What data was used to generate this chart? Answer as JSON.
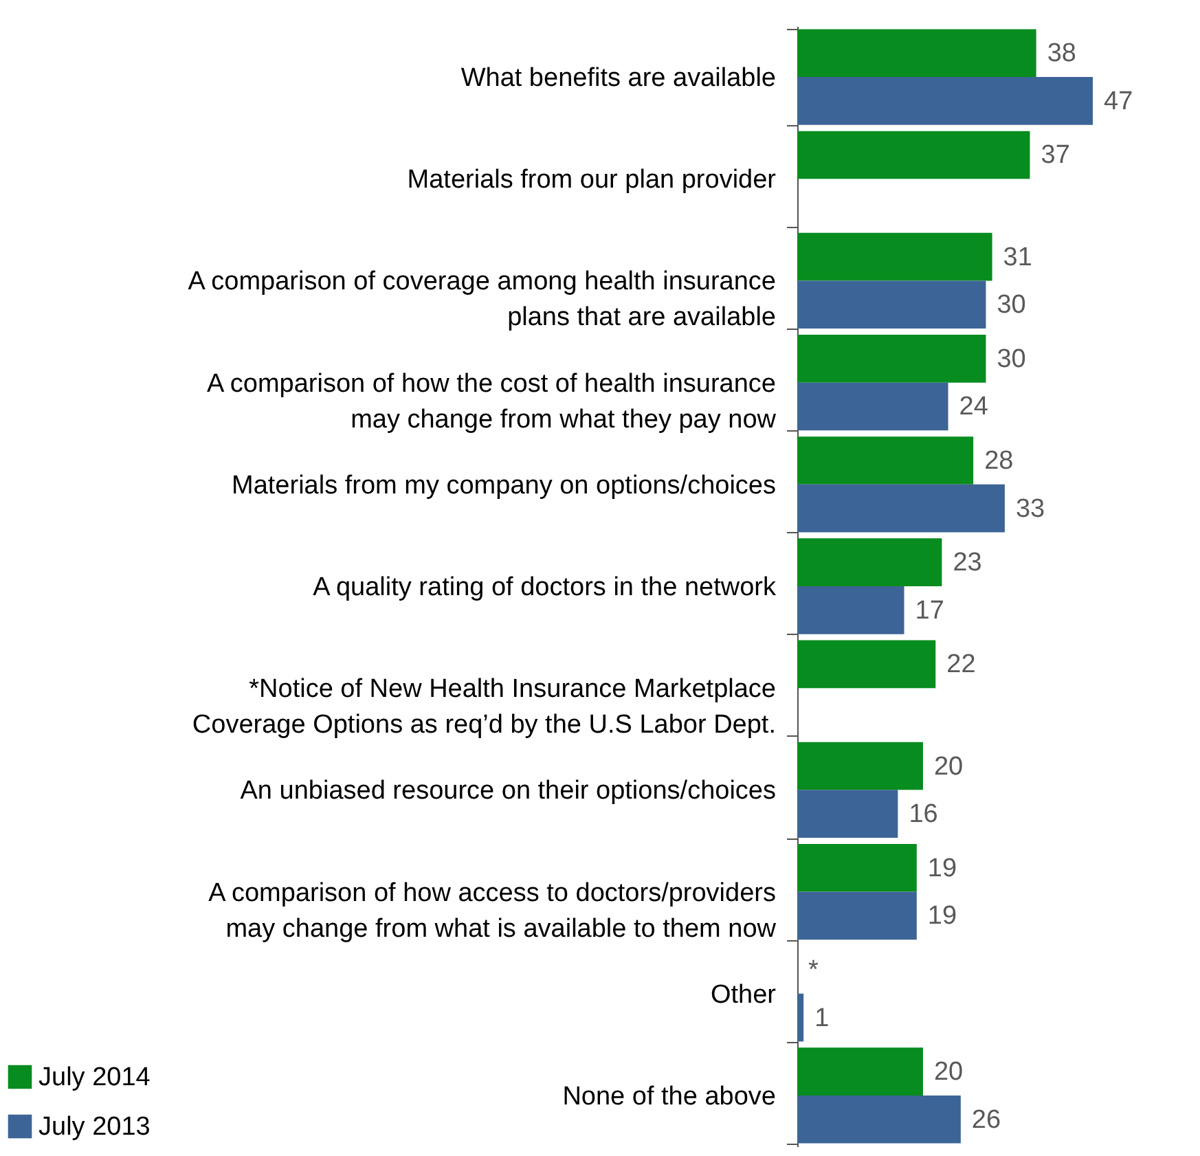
{
  "chart_data": {
    "type": "bar",
    "orientation": "horizontal",
    "legend": "bottom left",
    "categories": [
      "What benefits are available",
      "Materials from our plan provider",
      "A comparison of coverage among health insurance\nplans that are available",
      "A comparison of how the cost of health insurance\nmay change from what they pay now",
      "Materials from my company on options/choices",
      "A quality rating of doctors in the network",
      "*Notice of New Health Insurance Marketplace\nCoverage Options as req’d by the U.S Labor Dept.",
      "An unbiased resource on their options/choices",
      "A comparison of how access to doctors/providers\nmay change from what is available to them now",
      "Other",
      "None of the above"
    ],
    "series": [
      {
        "name": "July 2014",
        "color": "#078c1f",
        "values": [
          38,
          37,
          31,
          30,
          28,
          23,
          22,
          20,
          19,
          null,
          20
        ],
        "value_labels": [
          "38",
          "37",
          "31",
          "30",
          "28",
          "23",
          "22",
          "20",
          "19",
          "*",
          "20"
        ]
      },
      {
        "name": "July 2013",
        "color": "#3d6496",
        "values": [
          47,
          null,
          30,
          24,
          33,
          17,
          null,
          16,
          19,
          1,
          26
        ],
        "value_labels": [
          "47",
          null,
          "30",
          "24",
          "33",
          "17",
          null,
          "16",
          "19",
          "1",
          "26"
        ]
      }
    ]
  }
}
